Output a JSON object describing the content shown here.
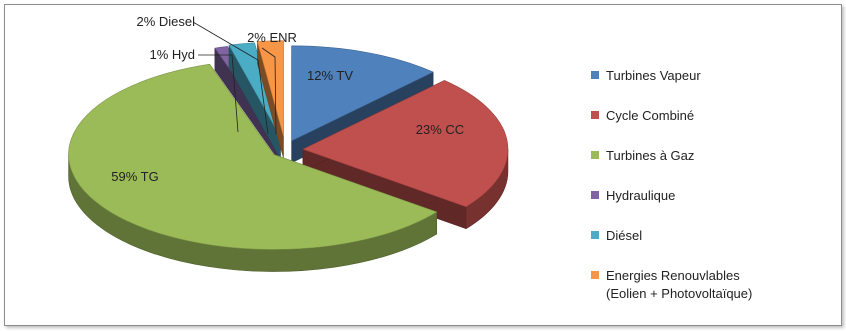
{
  "chart_data": {
    "type": "pie",
    "title": "",
    "style": "3d-exploded",
    "legend_position": "right",
    "slices": [
      {
        "name": "Turbines Vapeur",
        "value": 12,
        "label": "12% TV",
        "color": "#4f81bd"
      },
      {
        "name": "Cycle Combiné",
        "value": 23,
        "label": "23% CC",
        "color": "#c0504d"
      },
      {
        "name": "Turbines à Gaz",
        "value": 59,
        "label": "59% TG",
        "color": "#9bbb59"
      },
      {
        "name": "Hydraulique",
        "value": 1,
        "label": "1% Hyd",
        "color": "#8064a2"
      },
      {
        "name": "Diésel",
        "value": 2,
        "label": "2% Diesel",
        "color": "#4bacc6"
      },
      {
        "name": "Energies Renouvlables",
        "value": 2,
        "label": "2% ENR",
        "color": "#f79646"
      }
    ],
    "legend": [
      {
        "line1": "Turbines Vapeur",
        "line2": ""
      },
      {
        "line1": "Cycle Combiné",
        "line2": ""
      },
      {
        "line1": "Turbines à Gaz",
        "line2": ""
      },
      {
        "line1": "Hydraulique",
        "line2": ""
      },
      {
        "line1": "Diésel",
        "line2": ""
      },
      {
        "line1": "Energies Renouvlables",
        "line2": "(Eolien + Photovoltaïque)"
      }
    ]
  }
}
